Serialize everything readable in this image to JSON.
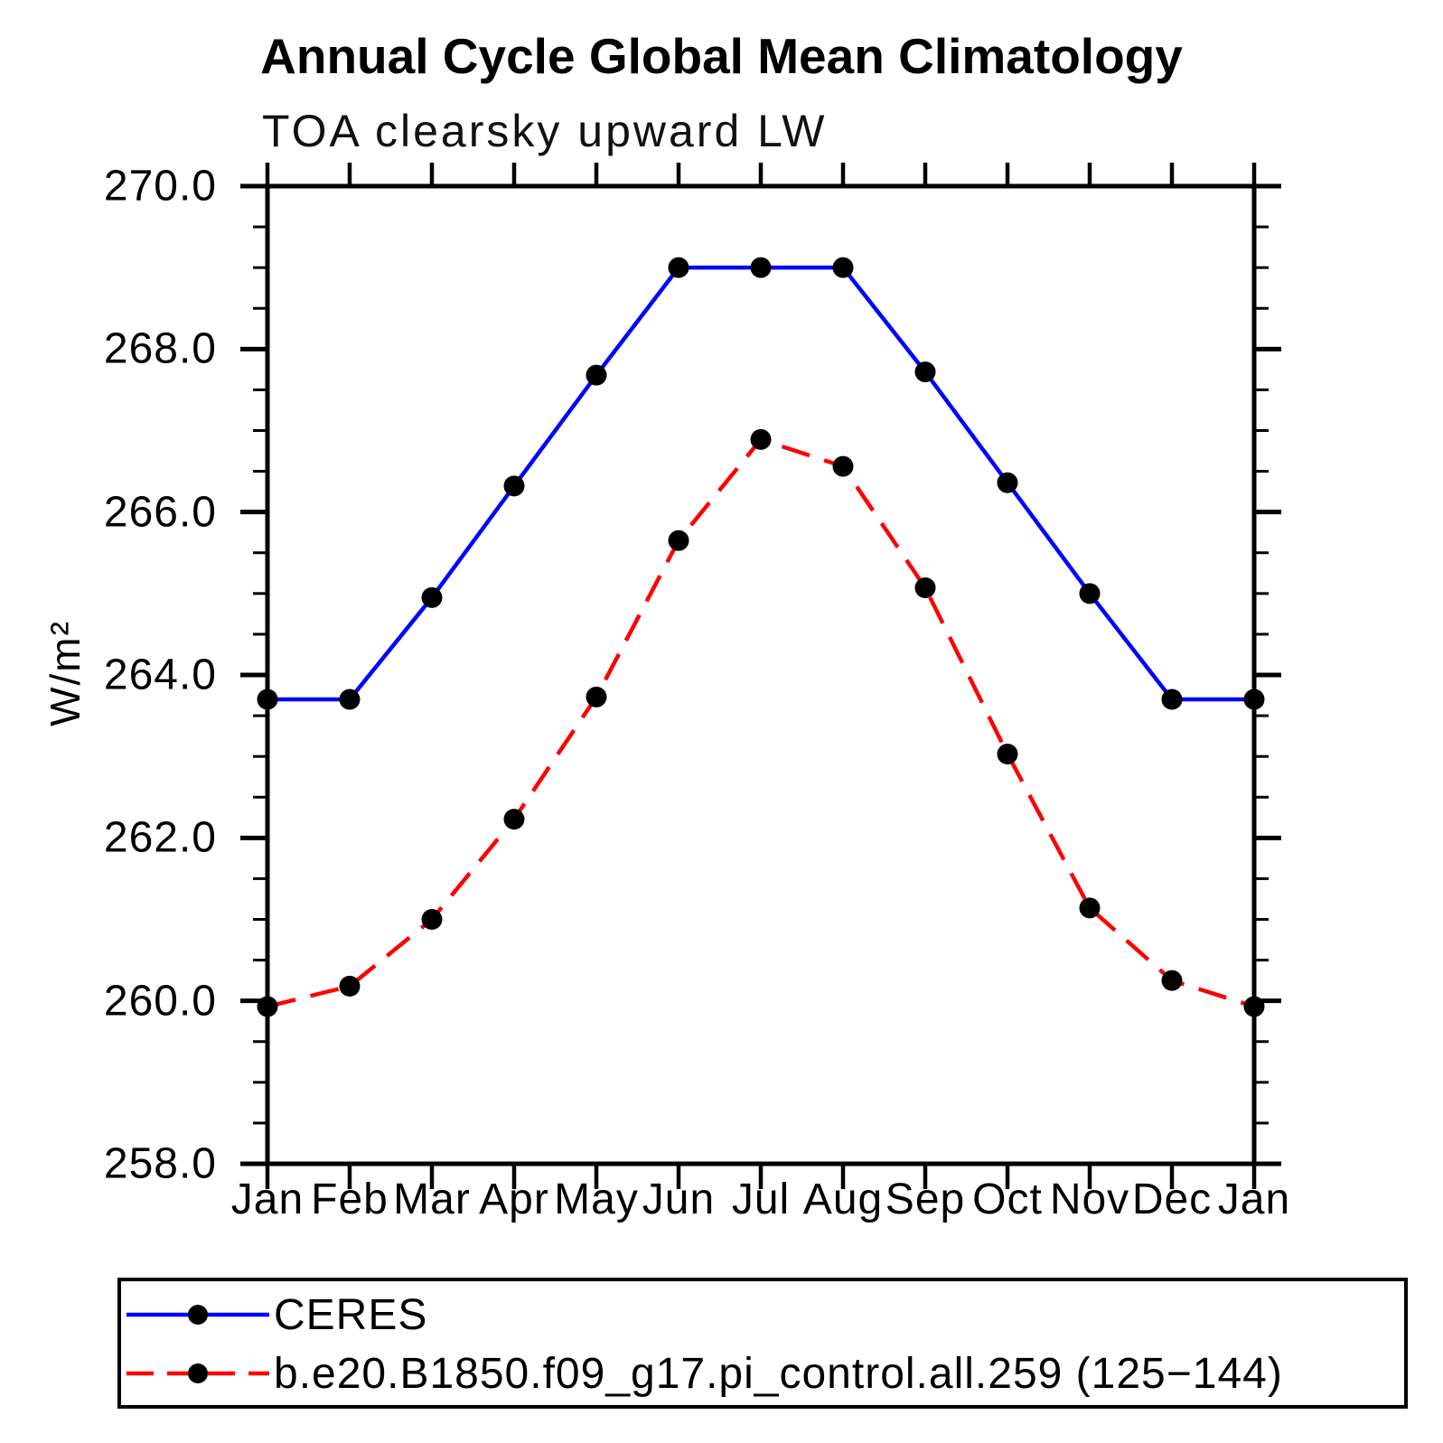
{
  "chart_data": {
    "type": "line",
    "title": "Annual Cycle Global Mean Climatology",
    "subtitle": "TOA clearsky upward LW",
    "ylabel": "W/m²",
    "categories": [
      "Jan",
      "Feb",
      "Mar",
      "Apr",
      "May",
      "Jun",
      "Jul",
      "Aug",
      "Sep",
      "Oct",
      "Nov",
      "Dec",
      "Jan"
    ],
    "y_axis": {
      "min": 258.0,
      "max": 270.0,
      "major_step": 2.0,
      "minor_step": 0.5,
      "tick_labels": [
        "258.0",
        "260.0",
        "262.0",
        "264.0",
        "266.0",
        "268.0",
        "270.0"
      ]
    },
    "series": [
      {
        "name": "CERES",
        "color": "#0000ff",
        "line_style": "solid",
        "marker": "filled-circle",
        "marker_color": "#000000",
        "values": [
          263.7,
          263.7,
          264.95,
          266.32,
          267.68,
          269.0,
          269.0,
          269.0,
          267.72,
          266.36,
          265.0,
          263.7,
          263.7
        ]
      },
      {
        "name": "b.e20.B1850.f09_g17.pi_control.all.259 (125−144)",
        "color": "#ff0000",
        "line_style": "dashed",
        "marker": "filled-circle",
        "marker_color": "#000000",
        "values": [
          259.93,
          260.18,
          261.0,
          262.23,
          263.73,
          265.65,
          266.89,
          266.56,
          265.07,
          263.03,
          261.14,
          260.25,
          259.93
        ]
      }
    ],
    "legend_position": "bottom",
    "grid": false,
    "frame_color": "#000000"
  }
}
